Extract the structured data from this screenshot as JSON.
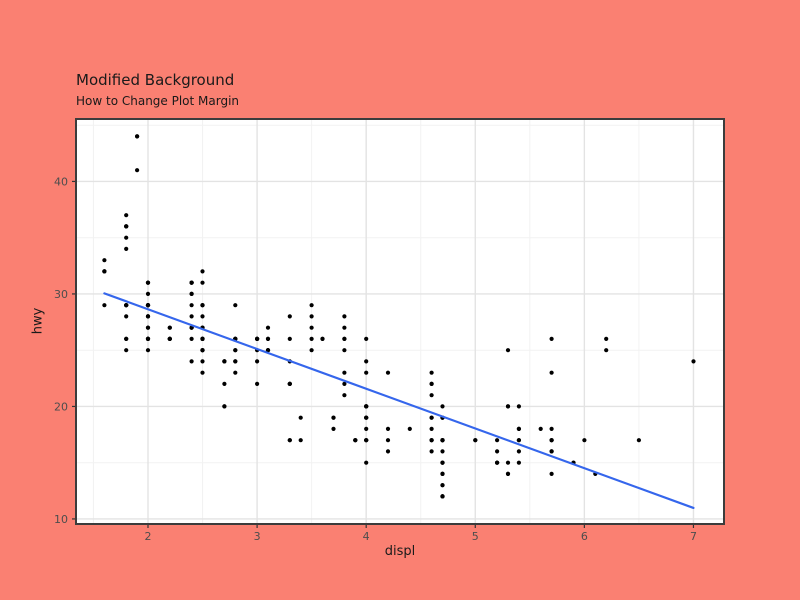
{
  "chart_data": {
    "type": "scatter",
    "title": "Modified Background",
    "subtitle": "How to Change Plot Margin",
    "xlabel": "displ",
    "ylabel": "hwy",
    "xlim": [
      1.34,
      7.28
    ],
    "ylim": [
      9.55,
      45.55
    ],
    "x_major_ticks": [
      2,
      3,
      4,
      5,
      6,
      7
    ],
    "x_minor_ticks": [
      1.5,
      2.5,
      3.5,
      4.5,
      5.5,
      6.5
    ],
    "y_major_ticks": [
      10,
      20,
      30,
      40
    ],
    "y_minor_ticks": [
      15,
      25,
      35,
      45
    ],
    "grid": "on",
    "legend": "none",
    "colors": {
      "background": "#fa8072",
      "panel": "#ffffff",
      "panel_border": "#3c3c3c",
      "grid_major": "#e3e3e3",
      "grid_minor": "#f2f2f2",
      "point": "#000000",
      "trend": "#3566ec",
      "tick": "#333333",
      "tick_label": "#4d4d4d"
    },
    "trend_line": {
      "x1": 1.6,
      "y1": 30.05,
      "x2": 7.0,
      "y2": 10.98
    },
    "points": [
      [
        1.8,
        29
      ],
      [
        1.8,
        29
      ],
      [
        2,
        31
      ],
      [
        2,
        30
      ],
      [
        2.8,
        26
      ],
      [
        2.8,
        26
      ],
      [
        3.1,
        27
      ],
      [
        1.8,
        26
      ],
      [
        1.8,
        25
      ],
      [
        2,
        28
      ],
      [
        2,
        27
      ],
      [
        2.8,
        25
      ],
      [
        2.8,
        25
      ],
      [
        3.1,
        25
      ],
      [
        3.1,
        25
      ],
      [
        2.8,
        24
      ],
      [
        3.1,
        25
      ],
      [
        4.2,
        23
      ],
      [
        5.3,
        20
      ],
      [
        5.3,
        15
      ],
      [
        5.3,
        20
      ],
      [
        5.7,
        17
      ],
      [
        6,
        17
      ],
      [
        5.7,
        26
      ],
      [
        5.7,
        23
      ],
      [
        6.2,
        26
      ],
      [
        6.2,
        25
      ],
      [
        7,
        24
      ],
      [
        5.3,
        14
      ],
      [
        5.3,
        14
      ],
      [
        5.7,
        16
      ],
      [
        6.5,
        17
      ],
      [
        2.4,
        27
      ],
      [
        2.4,
        30
      ],
      [
        3.1,
        26
      ],
      [
        3.5,
        29
      ],
      [
        3.6,
        26
      ],
      [
        2.4,
        24
      ],
      [
        3,
        24
      ],
      [
        3.3,
        22
      ],
      [
        3.3,
        22
      ],
      [
        3.3,
        24
      ],
      [
        3.3,
        22
      ],
      [
        3.3,
        17
      ],
      [
        3.8,
        22
      ],
      [
        3.8,
        21
      ],
      [
        3.8,
        23
      ],
      [
        4,
        23
      ],
      [
        3.7,
        19
      ],
      [
        3.7,
        18
      ],
      [
        3.9,
        17
      ],
      [
        3.9,
        17
      ],
      [
        4.7,
        19
      ],
      [
        4.7,
        19
      ],
      [
        4.7,
        12
      ],
      [
        5.2,
        17
      ],
      [
        5.2,
        15
      ],
      [
        3.9,
        17
      ],
      [
        4.7,
        17
      ],
      [
        4.7,
        12
      ],
      [
        4.7,
        17
      ],
      [
        4.7,
        16
      ],
      [
        4.7,
        12
      ],
      [
        5.2,
        15
      ],
      [
        5.7,
        16
      ],
      [
        5.9,
        15
      ],
      [
        4.7,
        17
      ],
      [
        4.7,
        15
      ],
      [
        4.7,
        13
      ],
      [
        4.7,
        13
      ],
      [
        4.7,
        14
      ],
      [
        4.7,
        14
      ],
      [
        4.7,
        14
      ],
      [
        5.2,
        16
      ],
      [
        5.2,
        15
      ],
      [
        5.7,
        17
      ],
      [
        5.9,
        15
      ],
      [
        4.6,
        17
      ],
      [
        5.4,
        17
      ],
      [
        5.4,
        18
      ],
      [
        4,
        17
      ],
      [
        4,
        19
      ],
      [
        4,
        17
      ],
      [
        4,
        19
      ],
      [
        4.6,
        19
      ],
      [
        5,
        17
      ],
      [
        4.2,
        17
      ],
      [
        4.2,
        16
      ],
      [
        4.6,
        16
      ],
      [
        4.6,
        17
      ],
      [
        4.6,
        17
      ],
      [
        5.4,
        15
      ],
      [
        3.8,
        26
      ],
      [
        3.8,
        25
      ],
      [
        4,
        26
      ],
      [
        4,
        24
      ],
      [
        4.6,
        21
      ],
      [
        4.6,
        22
      ],
      [
        4.6,
        23
      ],
      [
        4.6,
        22
      ],
      [
        5.4,
        20
      ],
      [
        1.6,
        33
      ],
      [
        1.6,
        32
      ],
      [
        1.6,
        32
      ],
      [
        1.6,
        29
      ],
      [
        1.6,
        32
      ],
      [
        1.8,
        34
      ],
      [
        1.8,
        36
      ],
      [
        1.8,
        36
      ],
      [
        2,
        29
      ],
      [
        2.4,
        26
      ],
      [
        2.4,
        27
      ],
      [
        2.4,
        30
      ],
      [
        2.4,
        31
      ],
      [
        2.5,
        26
      ],
      [
        2.5,
        26
      ],
      [
        3.3,
        28
      ],
      [
        2,
        26
      ],
      [
        2,
        29
      ],
      [
        2,
        28
      ],
      [
        2,
        27
      ],
      [
        2.7,
        24
      ],
      [
        2.7,
        24
      ],
      [
        2.7,
        24
      ],
      [
        3,
        22
      ],
      [
        3.7,
        19
      ],
      [
        4,
        20
      ],
      [
        4.7,
        17
      ],
      [
        4.7,
        12
      ],
      [
        4.7,
        19
      ],
      [
        5.7,
        14
      ],
      [
        6.1,
        14
      ],
      [
        4,
        15
      ],
      [
        4.2,
        18
      ],
      [
        4.4,
        18
      ],
      [
        4.6,
        18
      ],
      [
        5.4,
        17
      ],
      [
        5.4,
        16
      ],
      [
        5.4,
        18
      ],
      [
        4,
        17
      ],
      [
        4,
        19
      ],
      [
        4.6,
        19
      ],
      [
        5,
        17
      ],
      [
        2.4,
        29
      ],
      [
        2.4,
        27
      ],
      [
        2.5,
        31
      ],
      [
        2.5,
        32
      ],
      [
        3.5,
        27
      ],
      [
        3.5,
        26
      ],
      [
        3,
        26
      ],
      [
        3,
        25
      ],
      [
        3.5,
        25
      ],
      [
        3.3,
        17
      ],
      [
        4,
        20
      ],
      [
        5.6,
        18
      ],
      [
        3.1,
        26
      ],
      [
        3.8,
        26
      ],
      [
        3.8,
        27
      ],
      [
        3.8,
        28
      ],
      [
        5.3,
        25
      ],
      [
        2.5,
        23
      ],
      [
        2.5,
        24
      ],
      [
        2.5,
        25
      ],
      [
        2.5,
        27
      ],
      [
        2.5,
        25
      ],
      [
        2.5,
        26
      ],
      [
        2.2,
        26
      ],
      [
        2.2,
        26
      ],
      [
        2.5,
        26
      ],
      [
        2.5,
        26
      ],
      [
        2.5,
        25
      ],
      [
        2.5,
        27
      ],
      [
        2.5,
        25
      ],
      [
        2.5,
        27
      ],
      [
        2.7,
        20
      ],
      [
        2.7,
        20
      ],
      [
        2.7,
        22
      ],
      [
        3.4,
        17
      ],
      [
        3.4,
        19
      ],
      [
        4,
        18
      ],
      [
        4.7,
        20
      ],
      [
        2.2,
        26
      ],
      [
        2.2,
        27
      ],
      [
        2.4,
        28
      ],
      [
        2.4,
        31
      ],
      [
        3,
        26
      ],
      [
        3,
        26
      ],
      [
        3.5,
        28
      ],
      [
        2.2,
        26
      ],
      [
        2.2,
        27
      ],
      [
        2.4,
        31
      ],
      [
        2.4,
        31
      ],
      [
        3,
        26
      ],
      [
        3.3,
        26
      ],
      [
        1.8,
        26
      ],
      [
        1.8,
        28
      ],
      [
        1.8,
        37
      ],
      [
        1.8,
        35
      ],
      [
        1.8,
        36
      ],
      [
        4.7,
        15
      ],
      [
        5.7,
        18
      ],
      [
        4,
        20
      ],
      [
        4,
        20
      ],
      [
        4.7,
        17
      ],
      [
        4.7,
        17
      ],
      [
        4.7,
        15
      ],
      [
        5.7,
        17
      ],
      [
        2,
        26
      ],
      [
        2,
        29
      ],
      [
        2,
        31
      ],
      [
        2,
        25
      ],
      [
        2.8,
        29
      ],
      [
        1.9,
        44
      ],
      [
        2,
        26
      ],
      [
        2,
        29
      ],
      [
        2,
        31
      ],
      [
        2,
        26
      ],
      [
        2.5,
        29
      ],
      [
        2.5,
        29
      ],
      [
        2.8,
        24
      ],
      [
        2.8,
        23
      ],
      [
        1.9,
        44
      ],
      [
        1.9,
        41
      ],
      [
        2,
        29
      ],
      [
        2,
        26
      ],
      [
        2.5,
        28
      ],
      [
        2.5,
        29
      ],
      [
        1.8,
        29
      ],
      [
        1.8,
        29
      ],
      [
        2,
        28
      ],
      [
        2,
        29
      ],
      [
        2.8,
        26
      ],
      [
        2.8,
        26
      ],
      [
        3.6,
        26
      ]
    ]
  }
}
